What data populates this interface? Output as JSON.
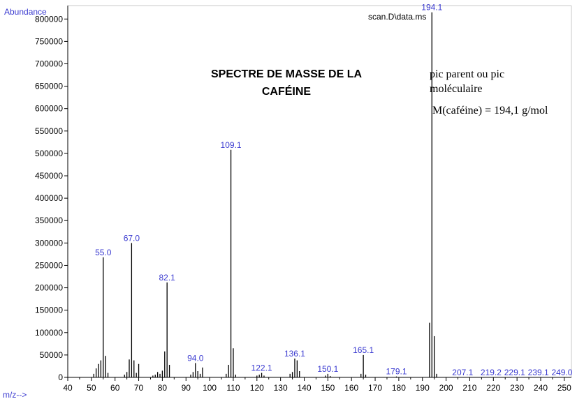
{
  "chart_data": {
    "type": "bar",
    "ylabel": "Abundance",
    "xlabel": "m/z-->",
    "file_label": "scan.D\\data.ms",
    "xlim": [
      40,
      253
    ],
    "ylim": [
      0,
      830000
    ],
    "x_ticks": [
      40,
      50,
      60,
      70,
      80,
      90,
      100,
      110,
      120,
      130,
      140,
      150,
      160,
      170,
      180,
      190,
      200,
      210,
      220,
      230,
      240,
      250
    ],
    "y_ticks": [
      0,
      50000,
      100000,
      150000,
      200000,
      250000,
      300000,
      350000,
      400000,
      450000,
      500000,
      550000,
      600000,
      650000,
      700000,
      750000,
      800000
    ],
    "peaks": [
      {
        "mz": 51,
        "abundance": 8000
      },
      {
        "mz": 52,
        "abundance": 20000
      },
      {
        "mz": 53,
        "abundance": 30000
      },
      {
        "mz": 54,
        "abundance": 38000
      },
      {
        "mz": 55,
        "abundance": 268000
      },
      {
        "mz": 56,
        "abundance": 48000
      },
      {
        "mz": 57,
        "abundance": 10000
      },
      {
        "mz": 64,
        "abundance": 6000
      },
      {
        "mz": 65,
        "abundance": 12000
      },
      {
        "mz": 66,
        "abundance": 40000
      },
      {
        "mz": 67,
        "abundance": 300000
      },
      {
        "mz": 68,
        "abundance": 38000
      },
      {
        "mz": 69,
        "abundance": 10000
      },
      {
        "mz": 70,
        "abundance": 30000
      },
      {
        "mz": 76,
        "abundance": 4000
      },
      {
        "mz": 77,
        "abundance": 6000
      },
      {
        "mz": 78,
        "abundance": 12000
      },
      {
        "mz": 79,
        "abundance": 8000
      },
      {
        "mz": 80,
        "abundance": 15000
      },
      {
        "mz": 81,
        "abundance": 58000
      },
      {
        "mz": 82,
        "abundance": 212000
      },
      {
        "mz": 83,
        "abundance": 28000
      },
      {
        "mz": 92,
        "abundance": 6000
      },
      {
        "mz": 93,
        "abundance": 12000
      },
      {
        "mz": 94,
        "abundance": 32000
      },
      {
        "mz": 95,
        "abundance": 14000
      },
      {
        "mz": 96,
        "abundance": 8000
      },
      {
        "mz": 97,
        "abundance": 22000
      },
      {
        "mz": 107,
        "abundance": 8000
      },
      {
        "mz": 108,
        "abundance": 28000
      },
      {
        "mz": 109,
        "abundance": 508000
      },
      {
        "mz": 110,
        "abundance": 65000
      },
      {
        "mz": 111,
        "abundance": 6000
      },
      {
        "mz": 120,
        "abundance": 4000
      },
      {
        "mz": 121,
        "abundance": 6000
      },
      {
        "mz": 122,
        "abundance": 10000
      },
      {
        "mz": 123,
        "abundance": 4000
      },
      {
        "mz": 134,
        "abundance": 8000
      },
      {
        "mz": 135,
        "abundance": 12000
      },
      {
        "mz": 136,
        "abundance": 42000
      },
      {
        "mz": 137,
        "abundance": 38000
      },
      {
        "mz": 138,
        "abundance": 14000
      },
      {
        "mz": 149,
        "abundance": 4000
      },
      {
        "mz": 150,
        "abundance": 8000
      },
      {
        "mz": 151,
        "abundance": 3000
      },
      {
        "mz": 164,
        "abundance": 8000
      },
      {
        "mz": 165,
        "abundance": 50000
      },
      {
        "mz": 166,
        "abundance": 6000
      },
      {
        "mz": 179,
        "abundance": 2000
      },
      {
        "mz": 193,
        "abundance": 122000
      },
      {
        "mz": 194,
        "abundance": 815000
      },
      {
        "mz": 195,
        "abundance": 92000
      },
      {
        "mz": 196,
        "abundance": 8000
      }
    ],
    "peak_labels": [
      {
        "text": "55.0",
        "mz": 55,
        "abundance": 268000
      },
      {
        "text": "67.0",
        "mz": 67,
        "abundance": 300000
      },
      {
        "text": "82.1",
        "mz": 82,
        "abundance": 212000
      },
      {
        "text": "94.0",
        "mz": 94,
        "abundance": 32000
      },
      {
        "text": "109.1",
        "mz": 109,
        "abundance": 508000
      },
      {
        "text": "122.1",
        "mz": 122,
        "abundance": 10000
      },
      {
        "text": "136.1",
        "mz": 136,
        "abundance": 42000
      },
      {
        "text": "150.1",
        "mz": 150,
        "abundance": 8000
      },
      {
        "text": "165.1",
        "mz": 165,
        "abundance": 50000
      },
      {
        "text": "179.1",
        "mz": 179,
        "abundance": 2000
      },
      {
        "text": "194.1",
        "mz": 194,
        "abundance": 815000
      },
      {
        "text": "207.1",
        "mz": 207,
        "abundance": 0
      },
      {
        "text": "219.2",
        "mz": 219,
        "abundance": 0
      },
      {
        "text": "229.1",
        "mz": 229,
        "abundance": 0
      },
      {
        "text": "239.1",
        "mz": 239,
        "abundance": 0
      },
      {
        "text": "249.0",
        "mz": 249,
        "abundance": 0
      }
    ],
    "annotations": {
      "title_line1": "SPECTRE DE MASSE DE LA",
      "title_line2": "CAFÉINE",
      "parent_line1": "pic parent ou pic",
      "parent_line2": "moléculaire",
      "molar_mass": "M(caféine) = 194,1 g/mol"
    }
  }
}
